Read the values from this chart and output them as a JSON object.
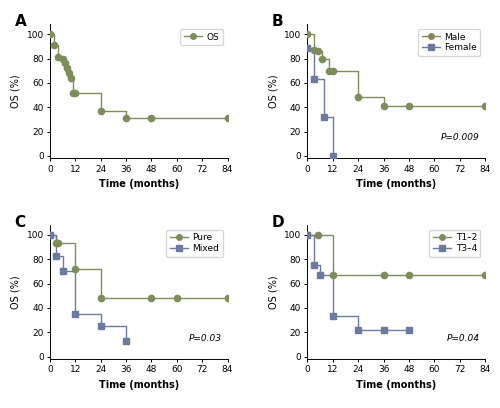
{
  "panel_A": {
    "label": "OS",
    "color": "#7d8c5a",
    "marker": "o",
    "x": [
      0,
      2,
      4,
      6,
      7,
      8,
      9,
      10,
      11,
      12,
      24,
      36,
      48,
      84
    ],
    "y": [
      100,
      91,
      81,
      80,
      76,
      72,
      68,
      64,
      52,
      52,
      37,
      31,
      31,
      31
    ]
  },
  "panel_B": {
    "male": {
      "label": "Male",
      "color": "#7d8c5a",
      "marker": "o",
      "x": [
        0,
        3,
        5,
        7,
        10,
        12,
        24,
        36,
        48,
        84
      ],
      "y": [
        100,
        87,
        86,
        80,
        70,
        70,
        48,
        41,
        41,
        41
      ]
    },
    "female": {
      "label": "Female",
      "color": "#6b7a9e",
      "marker": "s",
      "x": [
        0,
        3,
        8,
        12
      ],
      "y": [
        89,
        63,
        32,
        0
      ]
    },
    "pvalue": "P=0.009"
  },
  "panel_C": {
    "pure": {
      "label": "Pure",
      "color": "#7d8c5a",
      "marker": "o",
      "x": [
        0,
        3,
        4,
        12,
        24,
        48,
        60,
        84
      ],
      "y": [
        100,
        93,
        93,
        72,
        48,
        48,
        48,
        48
      ]
    },
    "mixed": {
      "label": "Mixed",
      "color": "#6b7a9e",
      "marker": "s",
      "x": [
        0,
        3,
        6,
        12,
        24,
        36
      ],
      "y": [
        100,
        83,
        70,
        35,
        25,
        13
      ]
    },
    "pvalue": "P=0.03"
  },
  "panel_D": {
    "t12": {
      "label": "T1–2",
      "color": "#7d8c5a",
      "marker": "o",
      "x": [
        0,
        5,
        12,
        36,
        48,
        84
      ],
      "y": [
        100,
        100,
        67,
        67,
        67,
        67
      ]
    },
    "t34": {
      "label": "T3–4",
      "color": "#6b7a9e",
      "marker": "s",
      "x": [
        0,
        3,
        6,
        12,
        24,
        36,
        48
      ],
      "y": [
        100,
        75,
        67,
        33,
        22,
        22,
        22
      ]
    },
    "pvalue": "P=0.04"
  },
  "xlim_AB": [
    0,
    84
  ],
  "xlim_C": [
    0,
    84
  ],
  "xlim_D": [
    0,
    84
  ],
  "ylim": [
    -2,
    108
  ],
  "xticks_AB": [
    0,
    12,
    24,
    36,
    48,
    60,
    72,
    84
  ],
  "xticks_CD": [
    0,
    12,
    24,
    36,
    48,
    60,
    72,
    84
  ],
  "yticks": [
    0,
    20,
    40,
    60,
    80,
    100
  ],
  "xlabel": "Time (months)",
  "ylabel": "OS (%)",
  "bg_color": "#ffffff",
  "panel_labels": [
    "A",
    "B",
    "C",
    "D"
  ],
  "line_color": "#a0a090",
  "olive_color": "#7d8c5a",
  "blue_color": "#6b7a9e"
}
